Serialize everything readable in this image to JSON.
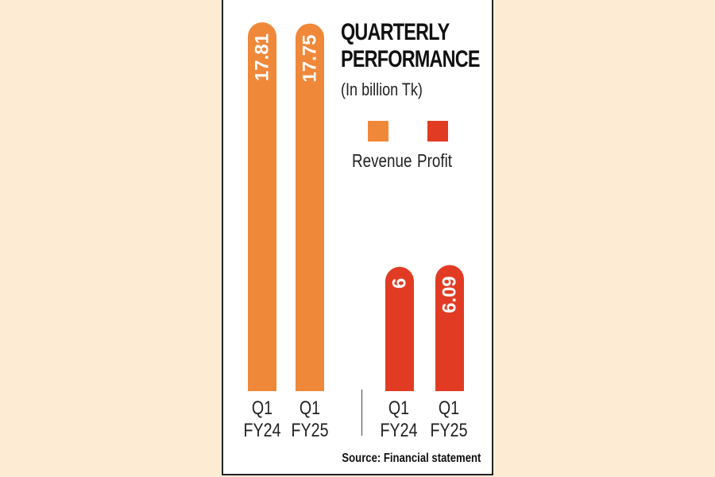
{
  "chart_data": {
    "type": "bar",
    "title_line1": "QUARTERLY",
    "title_line2": "PERFORMANCE",
    "subtitle": "(In billion Tk)",
    "categories": [
      {
        "line1": "Q1",
        "line2": "FY24"
      },
      {
        "line1": "Q1",
        "line2": "FY25"
      }
    ],
    "series": [
      {
        "name": "Revenue",
        "color": "#f0883a",
        "values": [
          17.81,
          17.75
        ],
        "labels": [
          "17.81",
          "17.75"
        ]
      },
      {
        "name": "Profit",
        "color": "#e23b24",
        "values": [
          6,
          6.09
        ],
        "labels": [
          "6",
          "6.09"
        ]
      }
    ],
    "ylim": [
      0,
      17.81
    ],
    "legend_position": "top-right",
    "grid": false,
    "source": "Source: Financial statement"
  }
}
